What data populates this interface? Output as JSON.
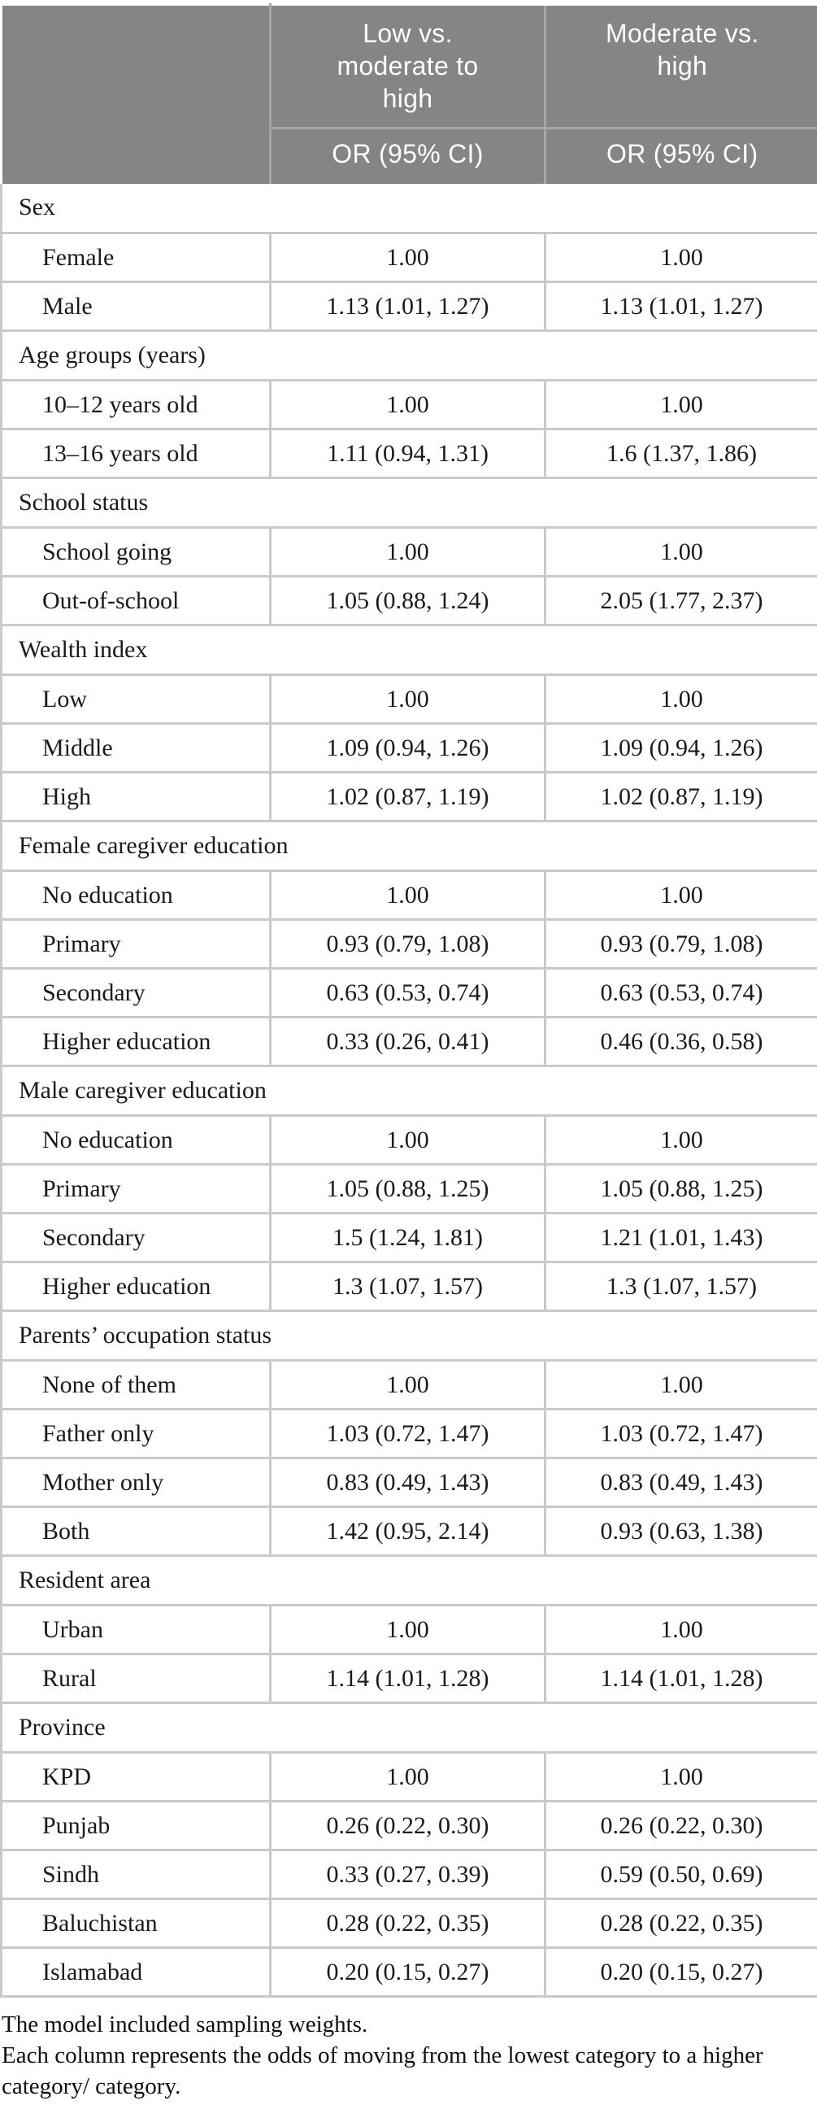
{
  "colors": {
    "header_bg": "#858585",
    "header_text": "#ffffff",
    "header_divider": "#a5a7a7",
    "body_border": "#cacaca",
    "text_color": "#1a1a1a"
  },
  "table": {
    "columns": [
      {
        "label": "Low vs. moderate to high",
        "sub_label": "OR (95% CI)"
      },
      {
        "label": "Moderate vs. high",
        "sub_label": "OR (95% CI)"
      }
    ],
    "sections": [
      {
        "group": "Sex",
        "rows": [
          [
            "Female",
            "1.00",
            "1.00"
          ],
          [
            "Male",
            "1.13 (1.01, 1.27)",
            "1.13 (1.01, 1.27)"
          ]
        ]
      },
      {
        "group": "Age groups (years)",
        "rows": [
          [
            "10–12 years old",
            "1.00",
            "1.00"
          ],
          [
            "13–16 years old",
            "1.11 (0.94, 1.31)",
            "1.6 (1.37, 1.86)"
          ]
        ]
      },
      {
        "group": "School status",
        "rows": [
          [
            "School going",
            "1.00",
            "1.00"
          ],
          [
            "Out-of-school",
            "1.05 (0.88, 1.24)",
            "2.05 (1.77, 2.37)"
          ]
        ]
      },
      {
        "group": "Wealth index",
        "rows": [
          [
            "Low",
            "1.00",
            "1.00"
          ],
          [
            "Middle",
            "1.09 (0.94, 1.26)",
            "1.09 (0.94, 1.26)"
          ],
          [
            "High",
            "1.02 (0.87, 1.19)",
            "1.02 (0.87, 1.19)"
          ]
        ]
      },
      {
        "group": "Female caregiver education",
        "rows": [
          [
            "No education",
            "1.00",
            "1.00"
          ],
          [
            "Primary",
            "0.93 (0.79, 1.08)",
            "0.93 (0.79, 1.08)"
          ],
          [
            "Secondary",
            "0.63 (0.53, 0.74)",
            "0.63 (0.53, 0.74)"
          ],
          [
            "Higher education",
            "0.33 (0.26, 0.41)",
            "0.46 (0.36, 0.58)"
          ]
        ]
      },
      {
        "group": "Male caregiver education",
        "rows": [
          [
            "No education",
            "1.00",
            "1.00"
          ],
          [
            "Primary",
            "1.05 (0.88, 1.25)",
            "1.05 (0.88, 1.25)"
          ],
          [
            "Secondary",
            "1.5 (1.24, 1.81)",
            "1.21 (1.01, 1.43)"
          ],
          [
            "Higher education",
            "1.3 (1.07, 1.57)",
            "1.3 (1.07, 1.57)"
          ]
        ]
      },
      {
        "group": "Parents’ occupation status",
        "rows": [
          [
            "None of them",
            "1.00",
            "1.00"
          ],
          [
            "Father only",
            "1.03 (0.72, 1.47)",
            "1.03 (0.72, 1.47)"
          ],
          [
            "Mother only",
            "0.83 (0.49, 1.43)",
            "0.83 (0.49, 1.43)"
          ],
          [
            "Both",
            "1.42 (0.95, 2.14)",
            "0.93 (0.63, 1.38)"
          ]
        ]
      },
      {
        "group": "Resident area",
        "rows": [
          [
            "Urban",
            "1.00",
            "1.00"
          ],
          [
            "Rural",
            "1.14 (1.01, 1.28)",
            "1.14 (1.01, 1.28)"
          ]
        ]
      },
      {
        "group": "Province",
        "rows": [
          [
            "KPD",
            "1.00",
            "1.00"
          ],
          [
            "Punjab",
            "0.26 (0.22, 0.30)",
            "0.26 (0.22, 0.30)"
          ],
          [
            "Sindh",
            "0.33 (0.27, 0.39)",
            "0.59 (0.50, 0.69)"
          ],
          [
            "Baluchistan",
            "0.28 (0.22, 0.35)",
            "0.28 (0.22, 0.35)"
          ],
          [
            "Islamabad",
            "0.20 (0.15, 0.27)",
            "0.20 (0.15, 0.27)"
          ]
        ]
      }
    ]
  },
  "footnotes": [
    "The model included sampling weights.",
    "Each column represents the odds of moving from the lowest category to a higher category/ category."
  ]
}
